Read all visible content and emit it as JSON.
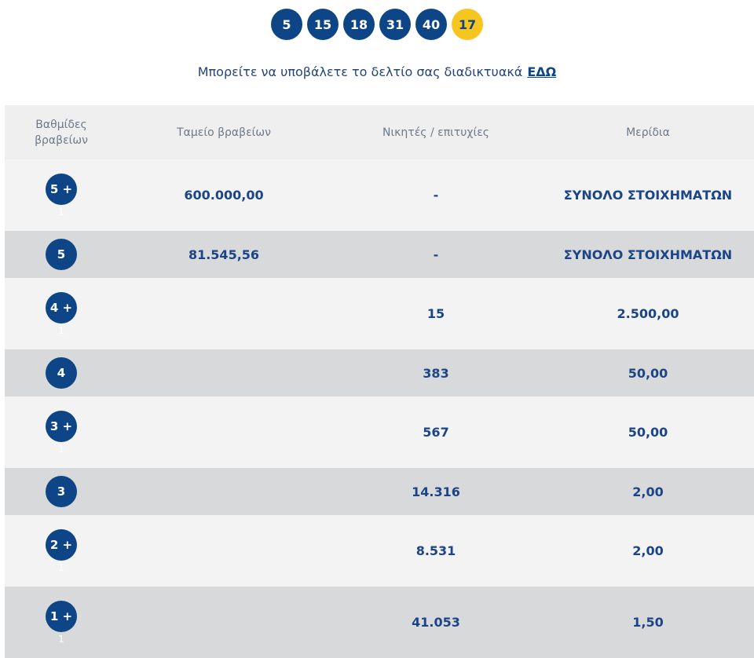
{
  "draw": {
    "numbers": [
      "5",
      "15",
      "18",
      "31",
      "40"
    ],
    "bonus": "17"
  },
  "info": {
    "text": "Μπορείτε να υποβάλετε το δελτίο σας διαδικτυακά",
    "link": "ΕΔΩ"
  },
  "table": {
    "headers": {
      "level_line1": "Βαθμίδες",
      "level_line2": "βραβείων",
      "fund": "Ταμείο βραβείων",
      "winners": "Νικητές / επιτυχίες",
      "dividend": "Μερίδια"
    },
    "rows": [
      {
        "badge": "5 +",
        "sub": "1",
        "fund": "600.000,00",
        "winners": "-",
        "dividend": "ΣΥΝΟΛΟ ΣΤΟΙΧΗΜΑΤΩΝ"
      },
      {
        "badge": "5",
        "sub": "",
        "fund": "81.545,56",
        "winners": "-",
        "dividend": "ΣΥΝΟΛΟ ΣΤΟΙΧΗΜΑΤΩΝ"
      },
      {
        "badge": "4 +",
        "sub": "1",
        "fund": "",
        "winners": "15",
        "dividend": "2.500,00"
      },
      {
        "badge": "4",
        "sub": "",
        "fund": "",
        "winners": "383",
        "dividend": "50,00"
      },
      {
        "badge": "3 +",
        "sub": "1",
        "fund": "",
        "winners": "567",
        "dividend": "50,00"
      },
      {
        "badge": "3",
        "sub": "",
        "fund": "",
        "winners": "14.316",
        "dividend": "2,00"
      },
      {
        "badge": "2 +",
        "sub": "1",
        "fund": "",
        "winners": "8.531",
        "dividend": "2,00"
      },
      {
        "badge": "1 +",
        "sub": "1",
        "fund": "",
        "winners": "41.053",
        "dividend": "1,50"
      }
    ]
  }
}
